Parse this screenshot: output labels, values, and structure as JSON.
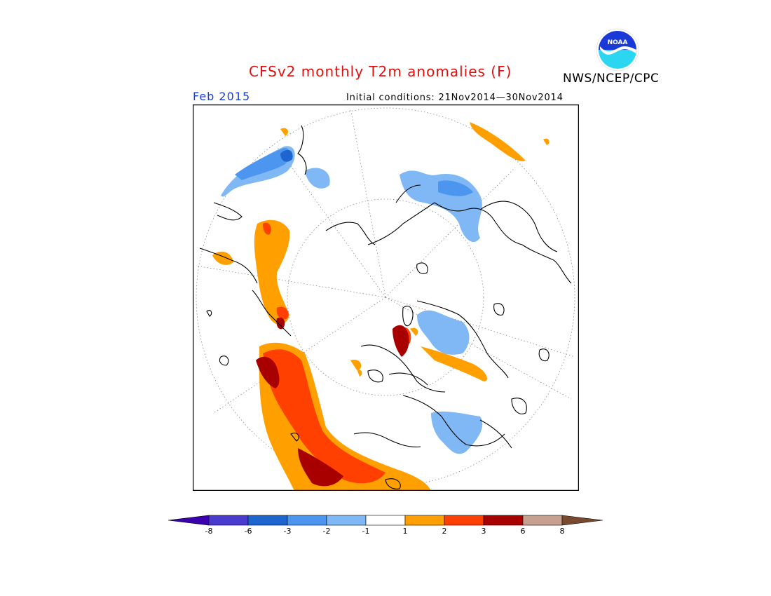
{
  "header": {
    "title": "CFSv2 monthly T2m anomalies (F)",
    "agency": "NWS/NCEP/CPC",
    "logo_text": "NOAA",
    "valid_month": "Feb 2015",
    "initial_conditions": "Initial conditions: 21Nov2014—30Nov2014"
  },
  "map": {
    "projection": "north-polar-stereographic",
    "variable": "2m temperature anomaly"
  },
  "colorbar": {
    "labels": [
      "-8",
      "-6",
      "-3",
      "-2",
      "-1",
      "1",
      "2",
      "3",
      "6",
      "8"
    ],
    "colors": [
      "#3a00b0",
      "#4a3acd",
      "#1f65d0",
      "#4d96f0",
      "#7fb8f5",
      "#ffffff",
      "#ffa000",
      "#ff4000",
      "#a80000",
      "#c8a090",
      "#7a4a30"
    ]
  }
}
